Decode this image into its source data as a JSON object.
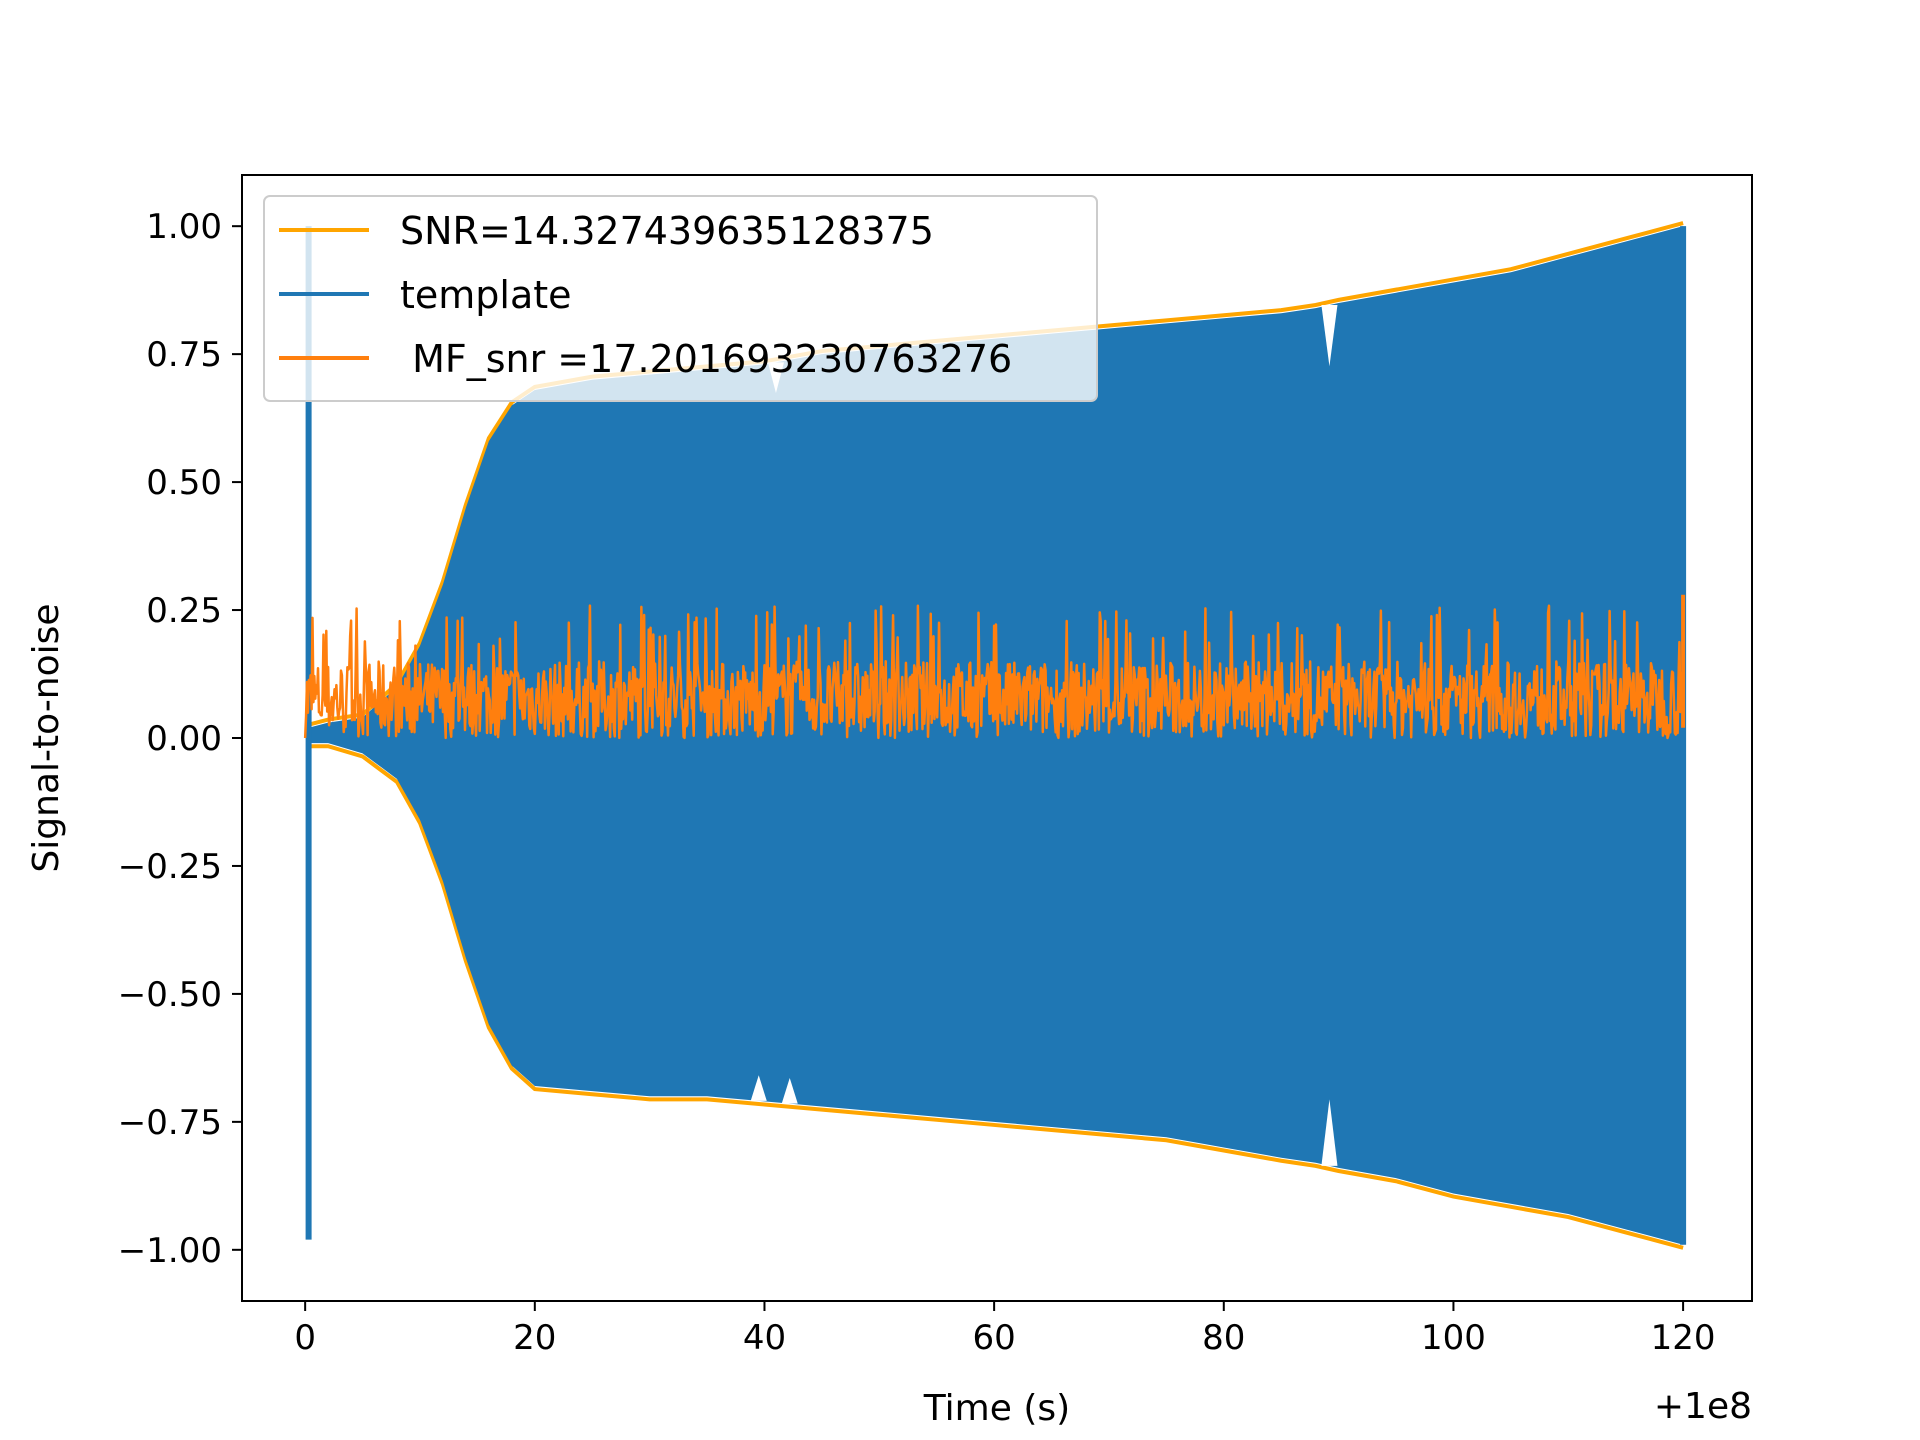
{
  "chart_data": {
    "type": "line",
    "xlabel": "Time (s)",
    "ylabel": "Signal-to-noise",
    "x_offset_label": "+1e8",
    "xlim": [
      -5.5,
      126
    ],
    "ylim": [
      -1.1,
      1.1
    ],
    "xticks": [
      0,
      20,
      40,
      60,
      80,
      100,
      120
    ],
    "xtick_labels": [
      "0",
      "20",
      "40",
      "60",
      "80",
      "100",
      "120"
    ],
    "yticks": [
      1.0,
      0.75,
      0.5,
      0.25,
      0.0,
      -0.25,
      -0.5,
      -0.75,
      -1.0
    ],
    "ytick_labels": [
      "1.00",
      "0.75",
      "0.50",
      "0.25",
      "0.00",
      "−0.25",
      "−0.50",
      "−0.75",
      "−1.00"
    ],
    "grid": false,
    "legend_position": "upper-left",
    "series": [
      {
        "name": "SNR=14.327439635128375",
        "color": "#ffa500",
        "envelope_upper": [
          [
            0.3,
            0.02
          ],
          [
            2,
            0.03
          ],
          [
            5,
            0.04
          ],
          [
            8,
            0.1
          ],
          [
            10,
            0.18
          ],
          [
            12,
            0.3
          ],
          [
            14,
            0.45
          ],
          [
            16,
            0.58
          ],
          [
            18,
            0.65
          ],
          [
            20,
            0.68
          ],
          [
            25,
            0.7
          ],
          [
            30,
            0.71
          ],
          [
            35,
            0.72
          ],
          [
            40,
            0.73
          ],
          [
            45,
            0.75
          ],
          [
            50,
            0.76
          ],
          [
            55,
            0.77
          ],
          [
            60,
            0.78
          ],
          [
            65,
            0.79
          ],
          [
            70,
            0.8
          ],
          [
            75,
            0.81
          ],
          [
            80,
            0.82
          ],
          [
            85,
            0.83
          ],
          [
            88,
            0.84
          ],
          [
            90,
            0.85
          ],
          [
            95,
            0.87
          ],
          [
            100,
            0.89
          ],
          [
            105,
            0.91
          ],
          [
            110,
            0.94
          ],
          [
            115,
            0.97
          ],
          [
            120,
            1.0
          ]
        ],
        "envelope_lower": [
          [
            0.3,
            -0.01
          ],
          [
            2,
            -0.01
          ],
          [
            5,
            -0.03
          ],
          [
            8,
            -0.08
          ],
          [
            10,
            -0.16
          ],
          [
            12,
            -0.28
          ],
          [
            14,
            -0.43
          ],
          [
            16,
            -0.56
          ],
          [
            18,
            -0.64
          ],
          [
            20,
            -0.68
          ],
          [
            25,
            -0.69
          ],
          [
            30,
            -0.7
          ],
          [
            35,
            -0.7
          ],
          [
            40,
            -0.71
          ],
          [
            45,
            -0.72
          ],
          [
            50,
            -0.73
          ],
          [
            55,
            -0.74
          ],
          [
            60,
            -0.75
          ],
          [
            65,
            -0.76
          ],
          [
            70,
            -0.77
          ],
          [
            75,
            -0.78
          ],
          [
            80,
            -0.8
          ],
          [
            85,
            -0.82
          ],
          [
            88,
            -0.83
          ],
          [
            90,
            -0.84
          ],
          [
            95,
            -0.86
          ],
          [
            100,
            -0.89
          ],
          [
            105,
            -0.91
          ],
          [
            110,
            -0.93
          ],
          [
            115,
            -0.96
          ],
          [
            120,
            -0.99
          ]
        ]
      },
      {
        "name": "template",
        "color": "#1f77b4",
        "envelope_upper": [
          [
            0.3,
            0.02
          ],
          [
            2,
            0.03
          ],
          [
            5,
            0.04
          ],
          [
            8,
            0.1
          ],
          [
            10,
            0.18
          ],
          [
            12,
            0.3
          ],
          [
            14,
            0.45
          ],
          [
            16,
            0.58
          ],
          [
            18,
            0.65
          ],
          [
            20,
            0.68
          ],
          [
            25,
            0.7
          ],
          [
            30,
            0.71
          ],
          [
            35,
            0.72
          ],
          [
            40,
            0.73
          ],
          [
            45,
            0.75
          ],
          [
            50,
            0.76
          ],
          [
            55,
            0.77
          ],
          [
            60,
            0.78
          ],
          [
            65,
            0.79
          ],
          [
            70,
            0.8
          ],
          [
            75,
            0.81
          ],
          [
            80,
            0.82
          ],
          [
            85,
            0.83
          ],
          [
            88,
            0.84
          ],
          [
            90,
            0.85
          ],
          [
            95,
            0.87
          ],
          [
            100,
            0.89
          ],
          [
            105,
            0.91
          ],
          [
            110,
            0.94
          ],
          [
            115,
            0.97
          ],
          [
            120,
            1.0
          ]
        ],
        "envelope_lower": [
          [
            0.3,
            -0.01
          ],
          [
            2,
            -0.01
          ],
          [
            5,
            -0.03
          ],
          [
            8,
            -0.08
          ],
          [
            10,
            -0.16
          ],
          [
            12,
            -0.28
          ],
          [
            14,
            -0.43
          ],
          [
            16,
            -0.56
          ],
          [
            18,
            -0.64
          ],
          [
            20,
            -0.68
          ],
          [
            25,
            -0.69
          ],
          [
            30,
            -0.7
          ],
          [
            35,
            -0.7
          ],
          [
            40,
            -0.71
          ],
          [
            45,
            -0.72
          ],
          [
            50,
            -0.73
          ],
          [
            55,
            -0.74
          ],
          [
            60,
            -0.75
          ],
          [
            65,
            -0.76
          ],
          [
            70,
            -0.77
          ],
          [
            75,
            -0.78
          ],
          [
            80,
            -0.8
          ],
          [
            85,
            -0.82
          ],
          [
            88,
            -0.83
          ],
          [
            90,
            -0.84
          ],
          [
            95,
            -0.86
          ],
          [
            100,
            -0.89
          ],
          [
            105,
            -0.91
          ],
          [
            110,
            -0.93
          ],
          [
            115,
            -0.96
          ],
          [
            120,
            -0.99
          ]
        ],
        "initial_spike_y": [
          1.0,
          -0.98
        ]
      },
      {
        "name": " MF_snr =17.201693230763276",
        "color": "#ff7f0e",
        "x_range": [
          0,
          120
        ],
        "typical_range": [
          0.0,
          0.2
        ],
        "peak_values": [
          0.27,
          0.26,
          0.25,
          0.24,
          0.28
        ]
      }
    ]
  }
}
